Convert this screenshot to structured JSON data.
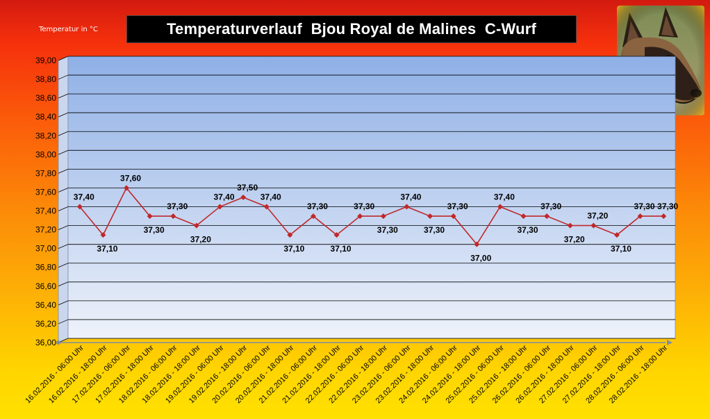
{
  "header": {
    "title": "Temperaturverlauf  Bjou Royal de Malines  C-Wurf",
    "ylabel": "Temperatur in °C"
  },
  "photo": {
    "icon": "dog-photo"
  },
  "colors": {
    "series": "#c0282a",
    "plot_top": "#8fb0e6",
    "plot_bottom": "#eef2fa",
    "grid": "#000000"
  },
  "chart_data": {
    "type": "line",
    "title": "Temperaturverlauf  Bjou Royal de Malines  C-Wurf",
    "ylabel": "Temperatur in °C",
    "xlabel": "",
    "ylim": [
      36.0,
      39.0
    ],
    "ytick_step": 0.2,
    "grid": true,
    "legend": "none",
    "categories": [
      "16.02.2016 - 06:00 Uhr",
      "16.02.2016 - 18:00 Uhr",
      "17.02.2016 - 06:00 Uhr",
      "17.02.2016 - 18:00 Uhr",
      "18.02.2016 - 06:00 Uhr",
      "18.02.2016 - 18:00 Uhr",
      "19.02.2016 - 06:00 Uhr",
      "19.02.2016 - 18:00 Uhr",
      "20.02.2016 - 06:00 Uhr",
      "20.02.2016 - 18:00 Uhr",
      "21.02.2016 - 06:00 Uhr",
      "21.02.2016 - 18:00 Uhr",
      "22.02.2016 - 06:00 Uhr",
      "22.02.2016 - 18:00 Uhr",
      "23.02.2016 - 06:00 Uhr",
      "23.02.2016 - 18:00 Uhr",
      "24.02.2016 - 06:00 Uhr",
      "24.02.2016 - 18:00 Uhr",
      "25.02.2016 - 06:00 Uhr",
      "25.02.2016 - 18:00 Uhr",
      "26.02.2016 - 06:00 Uhr",
      "26.02.2016 - 18:00 Uhr",
      "27.02.2016 - 06:00 Uhr",
      "27.02.2016 - 18:00 Uhr",
      "28.02.2016 - 06:00 Uhr",
      "28.02.2016 - 18:00 Uhr"
    ],
    "series": [
      {
        "values": [
          37.4,
          37.1,
          37.6,
          37.3,
          37.3,
          37.2,
          37.4,
          37.5,
          37.4,
          37.1,
          37.3,
          37.1,
          37.3,
          37.3,
          37.4,
          37.3,
          37.3,
          37.0,
          37.4,
          37.3,
          37.3,
          37.2,
          37.2,
          37.1,
          37.3,
          37.3
        ],
        "labels": [
          "37,40",
          "37,10",
          "37,60",
          "37,30",
          "37,30",
          "37,20",
          "37,40",
          "37,50",
          "37,40",
          "37,10",
          "37,30",
          "37,10",
          "37,30",
          "37,30",
          "37,40",
          "37,30",
          "37,30",
          "37,00",
          "37,40",
          "37,30",
          "37,30",
          "37,20",
          "37,20",
          "37,10",
          "37,30",
          "37,30"
        ]
      }
    ],
    "yticks": [
      "36,00",
      "36,20",
      "36,40",
      "36,60",
      "36,80",
      "37,00",
      "37,20",
      "37,40",
      "37,60",
      "37,80",
      "38,00",
      "38,20",
      "38,40",
      "38,60",
      "38,80",
      "39,00"
    ]
  }
}
